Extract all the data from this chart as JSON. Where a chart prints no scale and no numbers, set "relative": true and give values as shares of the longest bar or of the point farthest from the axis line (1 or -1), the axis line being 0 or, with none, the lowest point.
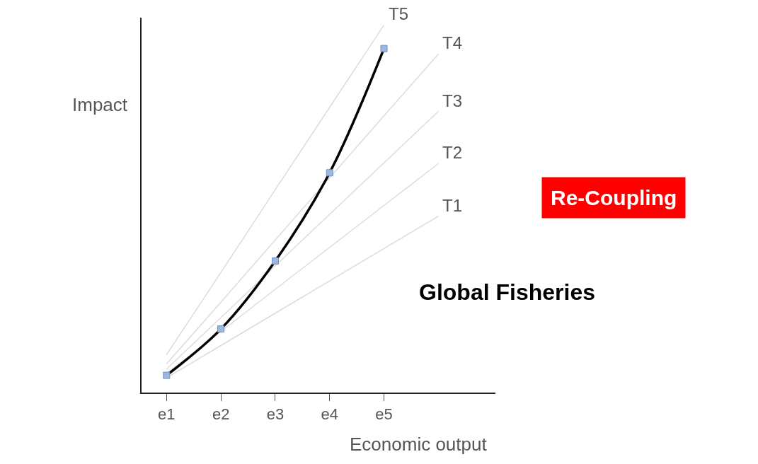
{
  "chart_data": {
    "type": "line",
    "relative": true,
    "xlabel": "Economic output",
    "ylabel": "Impact",
    "categories": [
      "e1",
      "e2",
      "e3",
      "e4",
      "e5",
      null
    ],
    "grid": false,
    "legend": false,
    "tick_labels": "x",
    "series": [
      {
        "name": "T1",
        "color": "#dcdcdc",
        "values": [
          0.04,
          0.128,
          0.216,
          0.304,
          0.392,
          0.48
        ],
        "marker": "none"
      },
      {
        "name": "T2",
        "color": "#dcdcdc",
        "values": [
          0.052,
          0.166,
          0.281,
          0.395,
          0.509,
          0.623
        ],
        "marker": "none"
      },
      {
        "name": "T3",
        "color": "#dcdcdc",
        "values": [
          0.064,
          0.204,
          0.345,
          0.485,
          0.625,
          0.765
        ],
        "marker": "none"
      },
      {
        "name": "T4",
        "color": "#dcdcdc",
        "values": [
          0.078,
          0.246,
          0.415,
          0.584,
          0.753,
          0.921
        ],
        "marker": "none"
      },
      {
        "name": "T5",
        "color": "#dcdcdc",
        "values": [
          0.103,
          0.327,
          0.552,
          0.776,
          1.0,
          null
        ],
        "marker": "none"
      },
      {
        "color": "#000000",
        "values": [
          0.047,
          0.173,
          0.358,
          0.598,
          0.936,
          null
        ],
        "marker": "square"
      }
    ],
    "annotations": [
      "Re-Coupling",
      "Global Fisheries"
    ]
  }
}
